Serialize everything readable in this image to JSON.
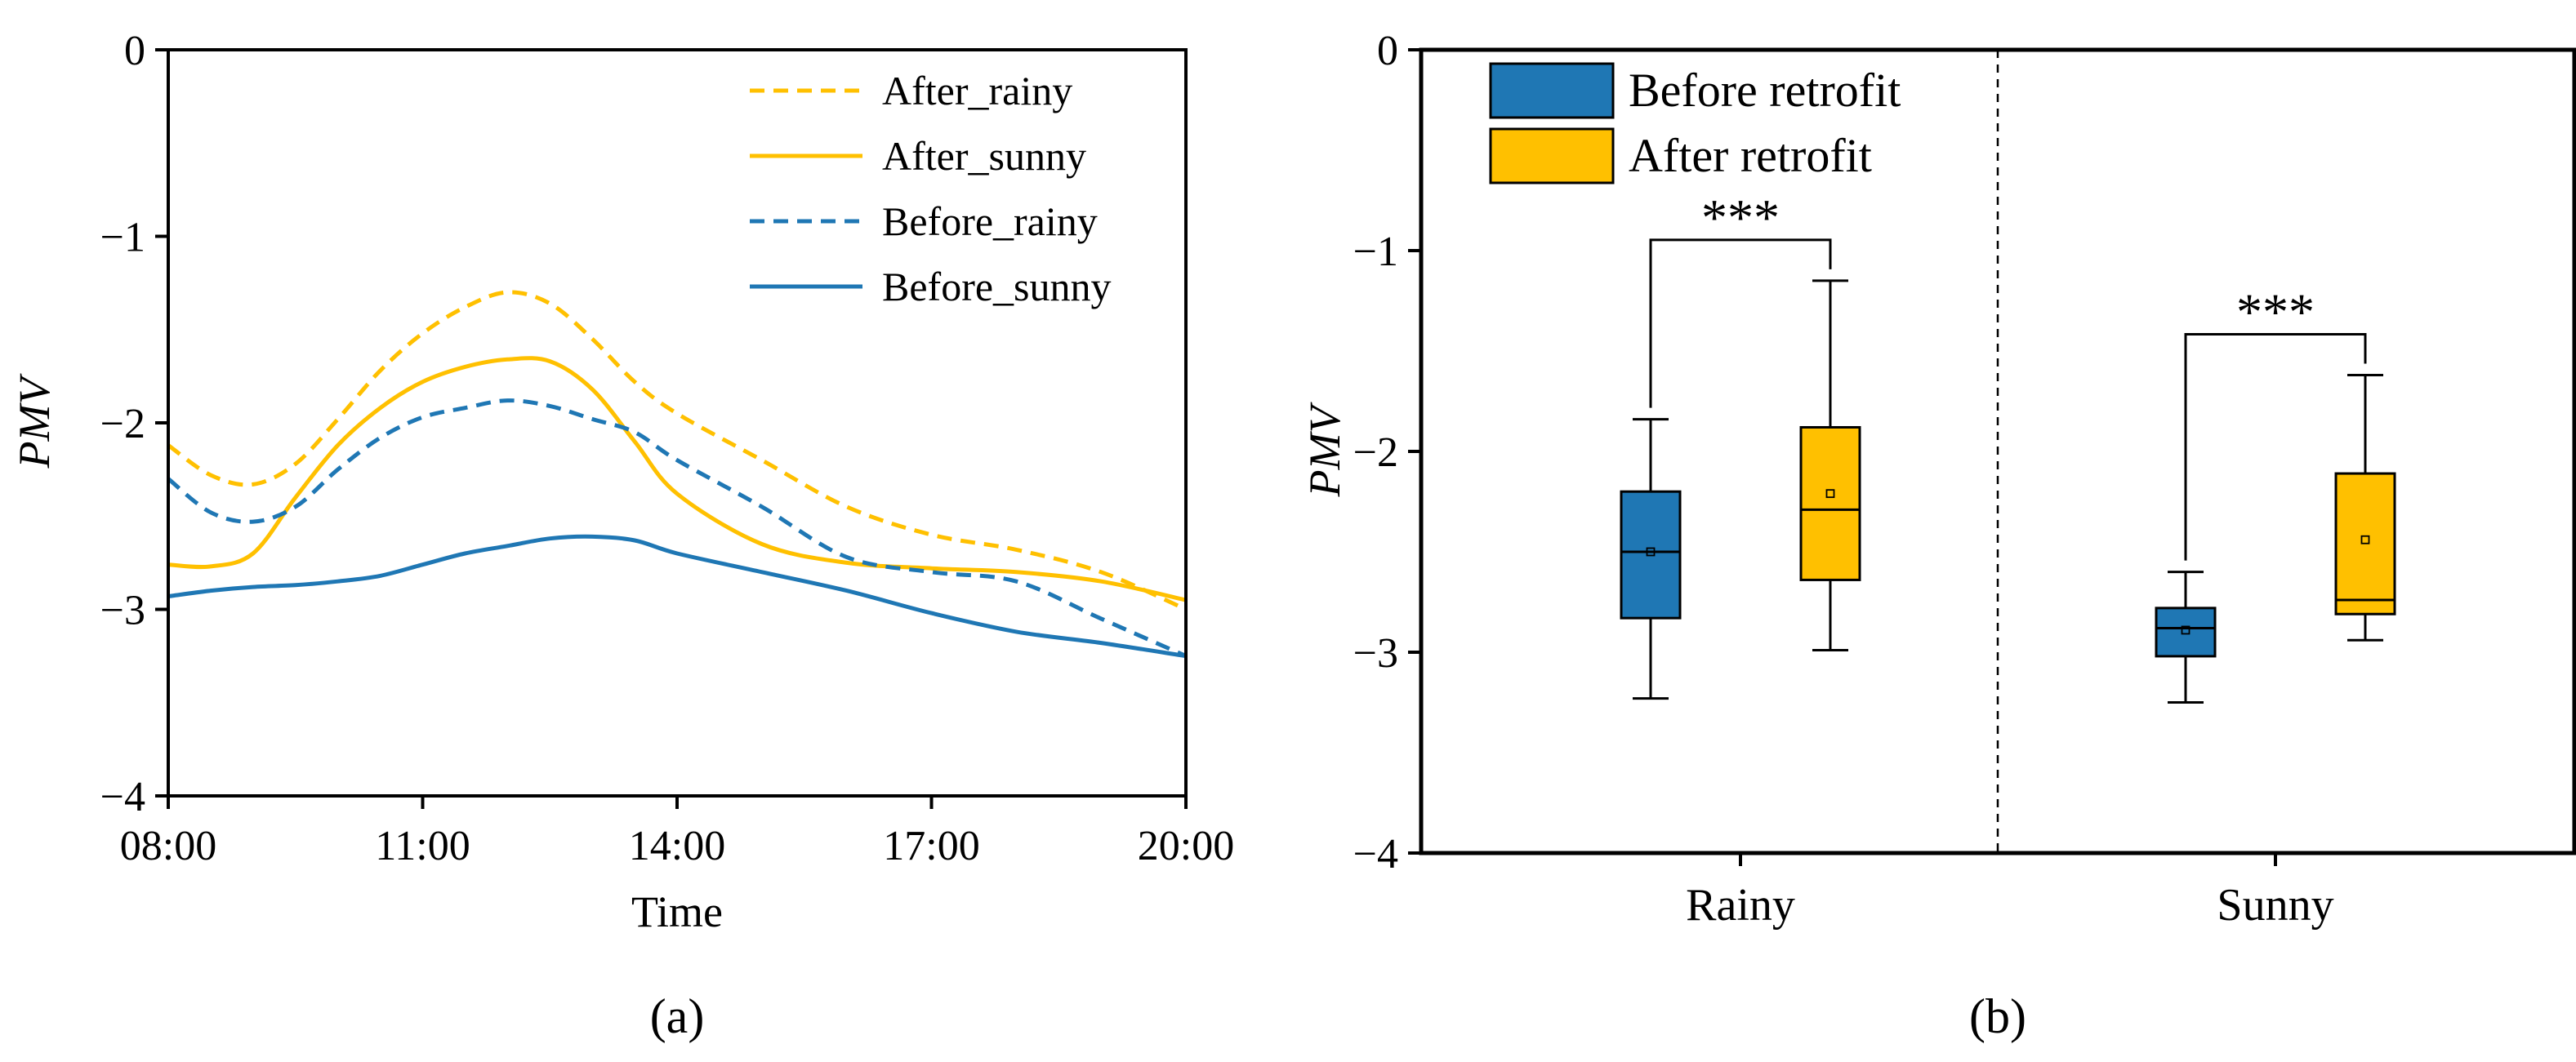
{
  "chart_data": [
    {
      "type": "line",
      "panel_label": "(a)",
      "xlabel": "Time",
      "ylabel": "PMV",
      "xlim": [
        8,
        20
      ],
      "ylim": [
        -4,
        0
      ],
      "x_ticks": [
        8,
        11,
        14,
        17,
        20
      ],
      "x_tick_labels": [
        "08:00",
        "11:00",
        "14:00",
        "17:00",
        "20:00"
      ],
      "y_ticks": [
        0,
        -1,
        -2,
        -3,
        -4
      ],
      "y_tick_labels": [
        "0",
        "−1",
        "−2",
        "−3",
        "−4"
      ],
      "legend_position": "top-right",
      "series": [
        {
          "name": "After_rainy",
          "color": "#FFC000",
          "style": "dashed",
          "x": [
            8,
            8.5,
            9,
            9.5,
            10,
            10.5,
            11,
            11.5,
            12,
            12.5,
            13,
            13.5,
            14,
            15,
            16,
            17,
            18,
            19,
            20
          ],
          "y": [
            -2.12,
            -2.28,
            -2.33,
            -2.22,
            -1.98,
            -1.72,
            -1.52,
            -1.38,
            -1.3,
            -1.36,
            -1.55,
            -1.78,
            -1.95,
            -2.2,
            -2.45,
            -2.6,
            -2.68,
            -2.8,
            -3.0
          ]
        },
        {
          "name": "After_sunny",
          "color": "#FFC000",
          "style": "solid",
          "x": [
            8,
            8.5,
            9,
            9.5,
            10,
            10.5,
            11,
            11.5,
            12,
            12.5,
            13,
            13.5,
            14,
            15,
            16,
            17,
            18,
            19,
            20
          ],
          "y": [
            -2.76,
            -2.77,
            -2.7,
            -2.4,
            -2.12,
            -1.92,
            -1.78,
            -1.7,
            -1.66,
            -1.67,
            -1.82,
            -2.1,
            -2.38,
            -2.65,
            -2.75,
            -2.78,
            -2.8,
            -2.85,
            -2.95
          ]
        },
        {
          "name": "Before_rainy",
          "color": "#1F77B4",
          "style": "dashed",
          "x": [
            8,
            8.5,
            9,
            9.5,
            10,
            10.5,
            11,
            11.5,
            12,
            12.5,
            13,
            13.5,
            14,
            15,
            16,
            17,
            18,
            19,
            20
          ],
          "y": [
            -2.3,
            -2.48,
            -2.53,
            -2.45,
            -2.25,
            -2.08,
            -1.97,
            -1.92,
            -1.88,
            -1.91,
            -1.98,
            -2.05,
            -2.2,
            -2.45,
            -2.72,
            -2.8,
            -2.85,
            -3.05,
            -3.25
          ]
        },
        {
          "name": "Before_sunny",
          "color": "#1F77B4",
          "style": "solid",
          "x": [
            8,
            8.5,
            9,
            9.5,
            10,
            10.5,
            11,
            11.5,
            12,
            12.5,
            13,
            13.5,
            14,
            15,
            16,
            17,
            18,
            19,
            20
          ],
          "y": [
            -2.93,
            -2.9,
            -2.88,
            -2.87,
            -2.85,
            -2.82,
            -2.76,
            -2.7,
            -2.66,
            -2.62,
            -2.61,
            -2.63,
            -2.7,
            -2.8,
            -2.9,
            -3.02,
            -3.12,
            -3.18,
            -3.25
          ]
        }
      ]
    },
    {
      "type": "box",
      "panel_label": "(b)",
      "xlabel": "",
      "ylabel": "PMV",
      "ylim": [
        -4,
        0
      ],
      "y_ticks": [
        0,
        -1,
        -2,
        -3,
        -4
      ],
      "y_tick_labels": [
        "0",
        "−1",
        "−2",
        "−3",
        "−4"
      ],
      "categories": [
        "Rainy",
        "Sunny"
      ],
      "legend_position": "top-left",
      "significance_label": "***",
      "series": [
        {
          "name": "Before retrofit",
          "color": "#1F77B4",
          "boxes": [
            {
              "category": "Rainy",
              "whisker_low": -3.23,
              "q1": -2.83,
              "median": -2.5,
              "q3": -2.2,
              "whisker_high": -1.84,
              "mean": -2.5
            },
            {
              "category": "Sunny",
              "whisker_low": -3.25,
              "q1": -3.02,
              "median": -2.88,
              "q3": -2.78,
              "whisker_high": -2.6,
              "mean": -2.89
            }
          ]
        },
        {
          "name": "After retrofit",
          "color": "#FFC000",
          "boxes": [
            {
              "category": "Rainy",
              "whisker_low": -2.99,
              "q1": -2.64,
              "median": -2.29,
              "q3": -1.88,
              "whisker_high": -1.15,
              "mean": -2.21
            },
            {
              "category": "Sunny",
              "whisker_low": -2.94,
              "q1": -2.81,
              "median": -2.74,
              "q3": -2.11,
              "whisker_high": -1.62,
              "mean": -2.44
            }
          ]
        }
      ]
    }
  ]
}
